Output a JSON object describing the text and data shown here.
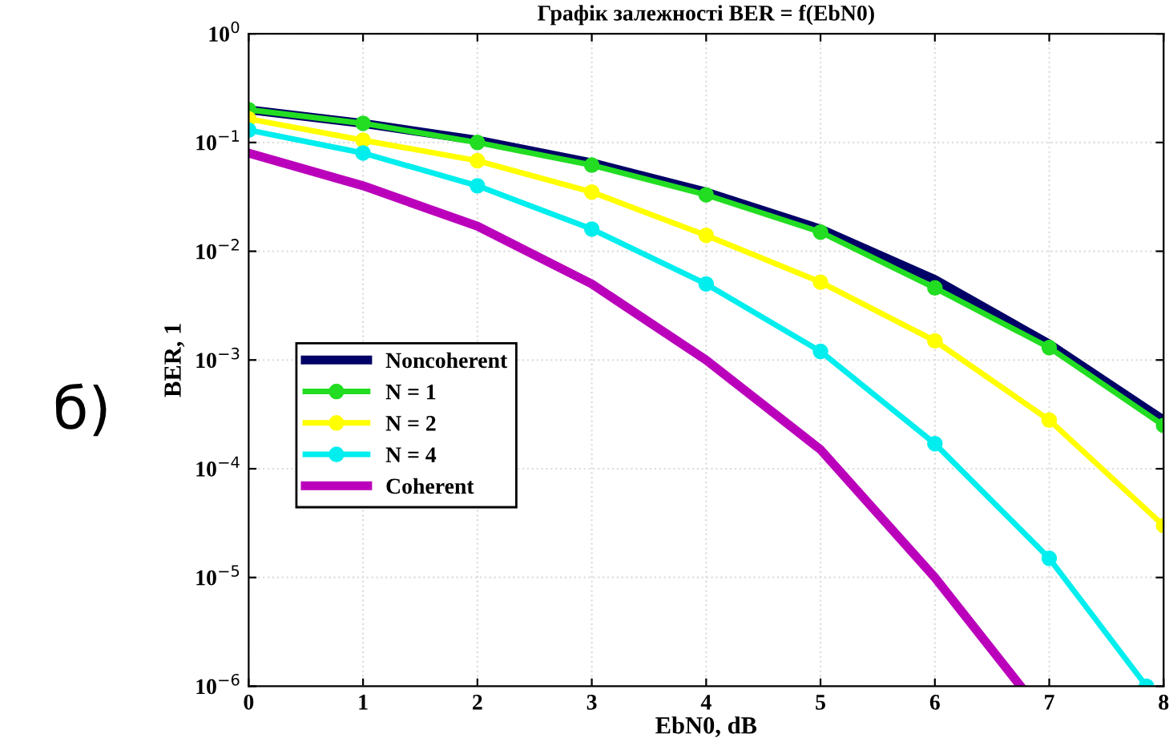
{
  "chart_data": {
    "type": "line",
    "title": "Графік залежності BER = f(EbN0)",
    "xlabel": "EbN0, dB",
    "ylabel": "BER, 1",
    "annotations": [
      "б)"
    ],
    "log": "y",
    "grid": true,
    "legend": "left",
    "line_style": "solid",
    "xlim": [
      0,
      8
    ],
    "xticks": [
      0,
      1,
      2,
      3,
      4,
      5,
      6,
      7,
      8
    ],
    "ylim": [
      1e-06,
      1
    ],
    "yticks": [
      {
        "value": 1e-06,
        "label": "10$^{−6}$"
      },
      {
        "value": 1e-05,
        "label": "10$^{−5}$"
      },
      {
        "value": 0.0001,
        "label": "10$^{−4}$"
      },
      {
        "value": 0.001,
        "label": "10$^{−3}$"
      },
      {
        "value": 0.01,
        "label": "10$^{−2}$"
      },
      {
        "value": 0.1,
        "label": "10$^{−1}$"
      },
      {
        "value": 1,
        "label": "10$^{0}$"
      }
    ],
    "series": [
      {
        "name": "Noncoherent",
        "color": "#000066",
        "marker": "none",
        "x": [
          0,
          1,
          2,
          3,
          4,
          5,
          6,
          7,
          8
        ],
        "values": [
          0.2,
          0.15,
          0.105,
          0.065,
          0.035,
          0.016,
          0.0055,
          0.0014,
          0.00028
        ]
      },
      {
        "name": "N = 1",
        "color": "#22dd22",
        "marker": "circle",
        "x": [
          0,
          1,
          2,
          3,
          4,
          5,
          6,
          7,
          8
        ],
        "values": [
          0.2,
          0.15,
          0.1,
          0.062,
          0.033,
          0.015,
          0.0046,
          0.0013,
          0.00025
        ]
      },
      {
        "name": "N = 2",
        "color": "#ffff00",
        "marker": "circle",
        "x": [
          0,
          1,
          2,
          3,
          4,
          5,
          6,
          7,
          8
        ],
        "values": [
          0.165,
          0.105,
          0.068,
          0.035,
          0.014,
          0.0052,
          0.0015,
          0.00028,
          3e-05
        ]
      },
      {
        "name": "N = 4",
        "color": "#00eeee",
        "marker": "circle",
        "x": [
          0,
          1,
          2,
          3,
          4,
          5,
          6,
          7,
          7.85
        ],
        "values": [
          0.13,
          0.08,
          0.04,
          0.016,
          0.005,
          0.0012,
          0.00017,
          1.5e-05,
          1e-06
        ]
      },
      {
        "name": "Coherent",
        "color": "#bb00bb",
        "marker": "none",
        "x": [
          0,
          1,
          2,
          3,
          4,
          5,
          6,
          6.75
        ],
        "values": [
          0.08,
          0.04,
          0.017,
          0.005,
          0.001,
          0.00015,
          1e-05,
          1e-06
        ]
      }
    ]
  }
}
